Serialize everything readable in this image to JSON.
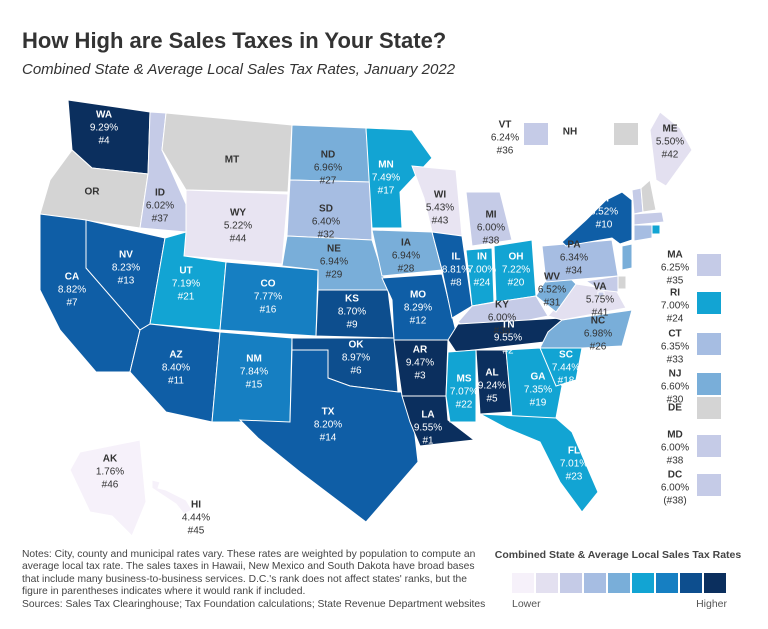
{
  "title": "How High are Sales Taxes in Your State?",
  "subtitle": "Combined State & Average Local Sales Tax Rates, January 2022",
  "states": [
    {
      "abbr": "WA",
      "rate": "9.29%",
      "rank": "#4",
      "color": "#0b2f5e"
    },
    {
      "abbr": "OR",
      "color": "#d4d4d4"
    },
    {
      "abbr": "CA",
      "rate": "8.82%",
      "rank": "#7",
      "color": "#0f5ea6"
    },
    {
      "abbr": "NV",
      "rate": "8.23%",
      "rank": "#13",
      "color": "#0f5ea6"
    },
    {
      "abbr": "ID",
      "rate": "6.02%",
      "rank": "#37",
      "color": "#c5cbe7"
    },
    {
      "abbr": "MT",
      "color": "#d4d4d4"
    },
    {
      "abbr": "WY",
      "rate": "5.22%",
      "rank": "#44",
      "color": "#e8e4f2"
    },
    {
      "abbr": "UT",
      "rate": "7.19%",
      "rank": "#21",
      "color": "#12a4d3"
    },
    {
      "abbr": "CO",
      "rate": "7.77%",
      "rank": "#16",
      "color": "#167fc2"
    },
    {
      "abbr": "AZ",
      "rate": "8.40%",
      "rank": "#11",
      "color": "#0f5ea6"
    },
    {
      "abbr": "NM",
      "rate": "7.84%",
      "rank": "#15",
      "color": "#167fc2"
    },
    {
      "abbr": "ND",
      "rate": "6.96%",
      "rank": "#27",
      "color": "#79aed9"
    },
    {
      "abbr": "SD",
      "rate": "6.40%",
      "rank": "#32",
      "color": "#a6bde2"
    },
    {
      "abbr": "NE",
      "rate": "6.94%",
      "rank": "#29",
      "color": "#79aed9"
    },
    {
      "abbr": "KS",
      "rate": "8.70%",
      "rank": "#9",
      "color": "#0d4e8e"
    },
    {
      "abbr": "OK",
      "rate": "8.97%",
      "rank": "#6",
      "color": "#0d4e8e"
    },
    {
      "abbr": "TX",
      "rate": "8.20%",
      "rank": "#14",
      "color": "#0f5ea6"
    },
    {
      "abbr": "MN",
      "rate": "7.49%",
      "rank": "#17",
      "color": "#12a4d3"
    },
    {
      "abbr": "IA",
      "rate": "6.94%",
      "rank": "#28",
      "color": "#79aed9"
    },
    {
      "abbr": "MO",
      "rate": "8.29%",
      "rank": "#12",
      "color": "#0f5ea6"
    },
    {
      "abbr": "AR",
      "rate": "9.47%",
      "rank": "#3",
      "color": "#0b2f5e"
    },
    {
      "abbr": "LA",
      "rate": "9.55%",
      "rank": "#1",
      "color": "#0b2f5e"
    },
    {
      "abbr": "WI",
      "rate": "5.43%",
      "rank": "#43",
      "color": "#e8e4f2"
    },
    {
      "abbr": "IL",
      "rate": "8.81%",
      "rank": "#8",
      "color": "#0f5ea6"
    },
    {
      "abbr": "MI",
      "rate": "6.00%",
      "rank": "#38",
      "color": "#c5cbe7"
    },
    {
      "abbr": "IN",
      "rate": "7.00%",
      "rank": "#24",
      "color": "#12a4d3"
    },
    {
      "abbr": "OH",
      "rate": "7.22%",
      "rank": "#20",
      "color": "#12a4d3"
    },
    {
      "abbr": "KY",
      "rate": "6.00%",
      "rank": "#38",
      "color": "#c5cbe7"
    },
    {
      "abbr": "TN",
      "rate": "9.55%",
      "rank": "#2",
      "color": "#0b2f5e"
    },
    {
      "abbr": "MS",
      "rate": "7.07%",
      "rank": "#22",
      "color": "#12a4d3"
    },
    {
      "abbr": "AL",
      "rate": "9.24%",
      "rank": "#5",
      "color": "#0b2f5e"
    },
    {
      "abbr": "GA",
      "rate": "7.35%",
      "rank": "#19",
      "color": "#12a4d3"
    },
    {
      "abbr": "FL",
      "rate": "7.01%",
      "rank": "#23",
      "color": "#12a4d3"
    },
    {
      "abbr": "SC",
      "rate": "7.44%",
      "rank": "#18",
      "color": "#12a4d3"
    },
    {
      "abbr": "NC",
      "rate": "6.98%",
      "rank": "#26",
      "color": "#79aed9"
    },
    {
      "abbr": "VA",
      "rate": "5.75%",
      "rank": "#41",
      "color": "#e3e0f0"
    },
    {
      "abbr": "WV",
      "rate": "6.52%",
      "rank": "#31",
      "color": "#79aed9"
    },
    {
      "abbr": "PA",
      "rate": "6.34%",
      "rank": "#34",
      "color": "#a6bde2"
    },
    {
      "abbr": "NY",
      "rate": "8.52%",
      "rank": "#10",
      "color": "#0f5ea6"
    },
    {
      "abbr": "ME",
      "rate": "5.50%",
      "rank": "#42",
      "color": "#e3e0f0"
    },
    {
      "abbr": "VT",
      "rate": "6.24%",
      "rank": "#36",
      "color": "#c5cbe7"
    },
    {
      "abbr": "NH",
      "color": "#d4d4d4"
    },
    {
      "abbr": "MA",
      "rate": "6.25%",
      "rank": "#35",
      "color": "#c5cbe7"
    },
    {
      "abbr": "RI",
      "rate": "7.00%",
      "rank": "#24",
      "color": "#12a4d3"
    },
    {
      "abbr": "CT",
      "rate": "6.35%",
      "rank": "#33",
      "color": "#a6bde2"
    },
    {
      "abbr": "NJ",
      "rate": "6.60%",
      "rank": "#30",
      "color": "#79aed9"
    },
    {
      "abbr": "DE",
      "color": "#d4d4d4"
    },
    {
      "abbr": "MD",
      "rate": "6.00%",
      "rank": "#38",
      "color": "#c5cbe7"
    },
    {
      "abbr": "DC",
      "rate": "6.00%",
      "rank": "(#38)",
      "color": "#c5cbe7"
    },
    {
      "abbr": "AK",
      "rate": "1.76%",
      "rank": "#46",
      "color": "#f6f1fa"
    },
    {
      "abbr": "HI",
      "rate": "4.44%",
      "rank": "#45",
      "color": "#f6f1fa"
    }
  ],
  "notes": "Notes: City, county and municipal rates vary. These rates are weighted by population to compute an average local tax rate. The sales taxes in Hawaii, New Mexico and South Dakota have broad bases that include many business-to-business services. D.C.'s rank does not affect states' ranks, but the figure in parentheses indicates where it would rank if included.",
  "sources": "Sources: Sales Tax Clearinghouse; Tax Foundation calculations; State Revenue Department websites",
  "legend": {
    "title": "Combined State & Average Local Sales Tax Rates",
    "colors": [
      "#f6f1fa",
      "#e3e0f0",
      "#c5cbe7",
      "#a6bde2",
      "#79aed9",
      "#12a4d3",
      "#167fc2",
      "#0d4e8e",
      "#0b2f5e"
    ],
    "low": "Lower",
    "high": "Higher"
  }
}
